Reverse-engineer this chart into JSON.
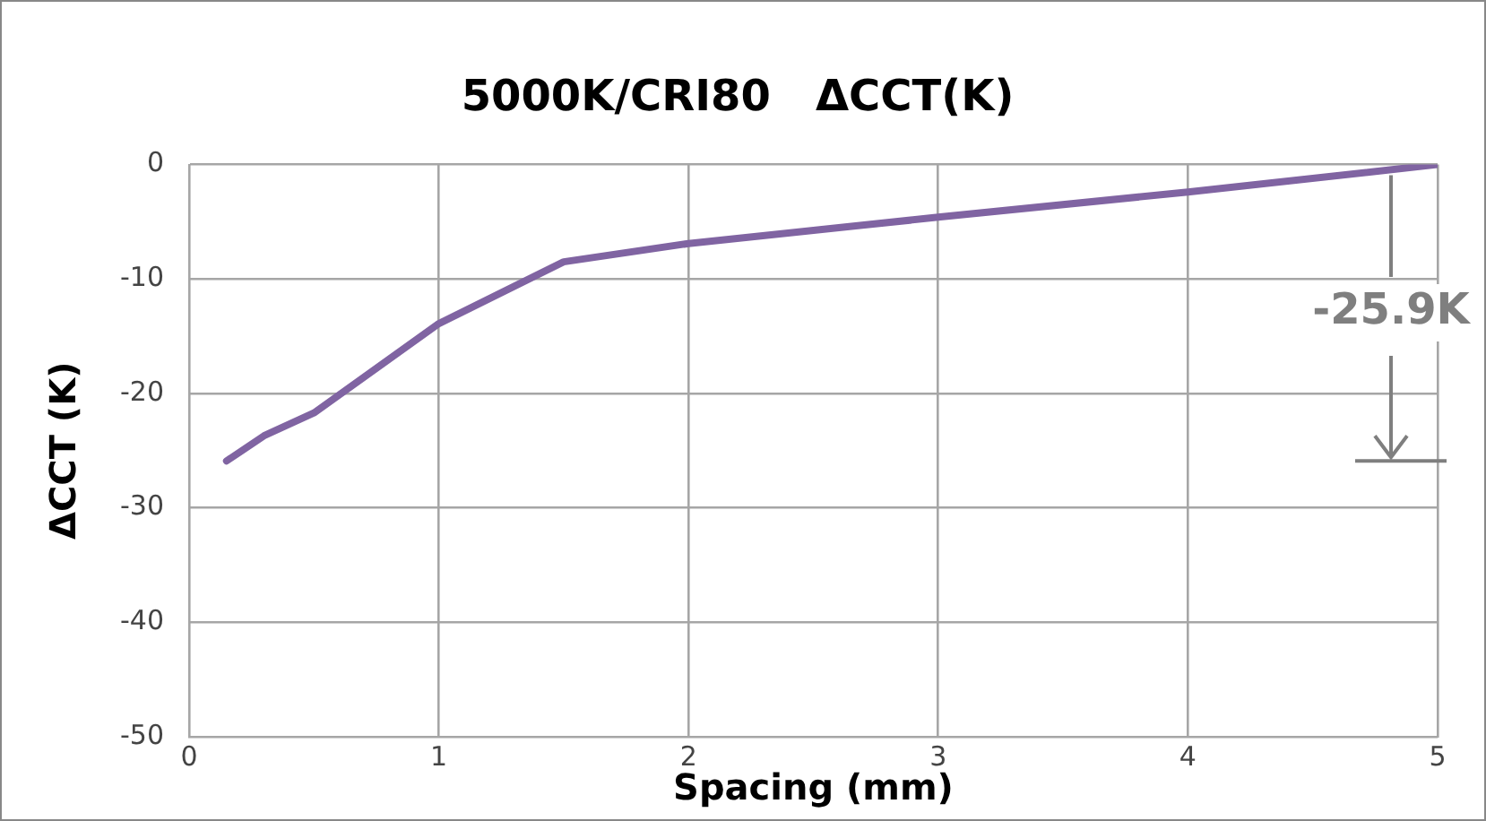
{
  "chart_data": {
    "type": "line",
    "title": "5000K/CRI80   ΔCCT(K)",
    "xlabel": "Spacing (mm)",
    "ylabel": "ΔCCT (K)",
    "series": [
      {
        "color": "#8064a2",
        "x": [
          0.15,
          0.3,
          0.5,
          1,
          1.5,
          2,
          3,
          4,
          5
        ],
        "values": [
          -25.9,
          -23.7,
          -21.7,
          -13.9,
          -8.5,
          -6.9,
          -4.6,
          -2.4,
          0
        ]
      }
    ],
    "xlim": [
      0,
      5
    ],
    "xticks": [
      0,
      1,
      2,
      3,
      4,
      5
    ],
    "ylim": [
      -50,
      0
    ],
    "yticks": [
      -50,
      -40,
      -30,
      -20,
      -10,
      0
    ],
    "grid": true,
    "legend": false,
    "marker": "none",
    "line_style": "solid",
    "annotations": [
      {
        "text": "-25.9K",
        "x": 5,
        "y": 0
      }
    ]
  }
}
